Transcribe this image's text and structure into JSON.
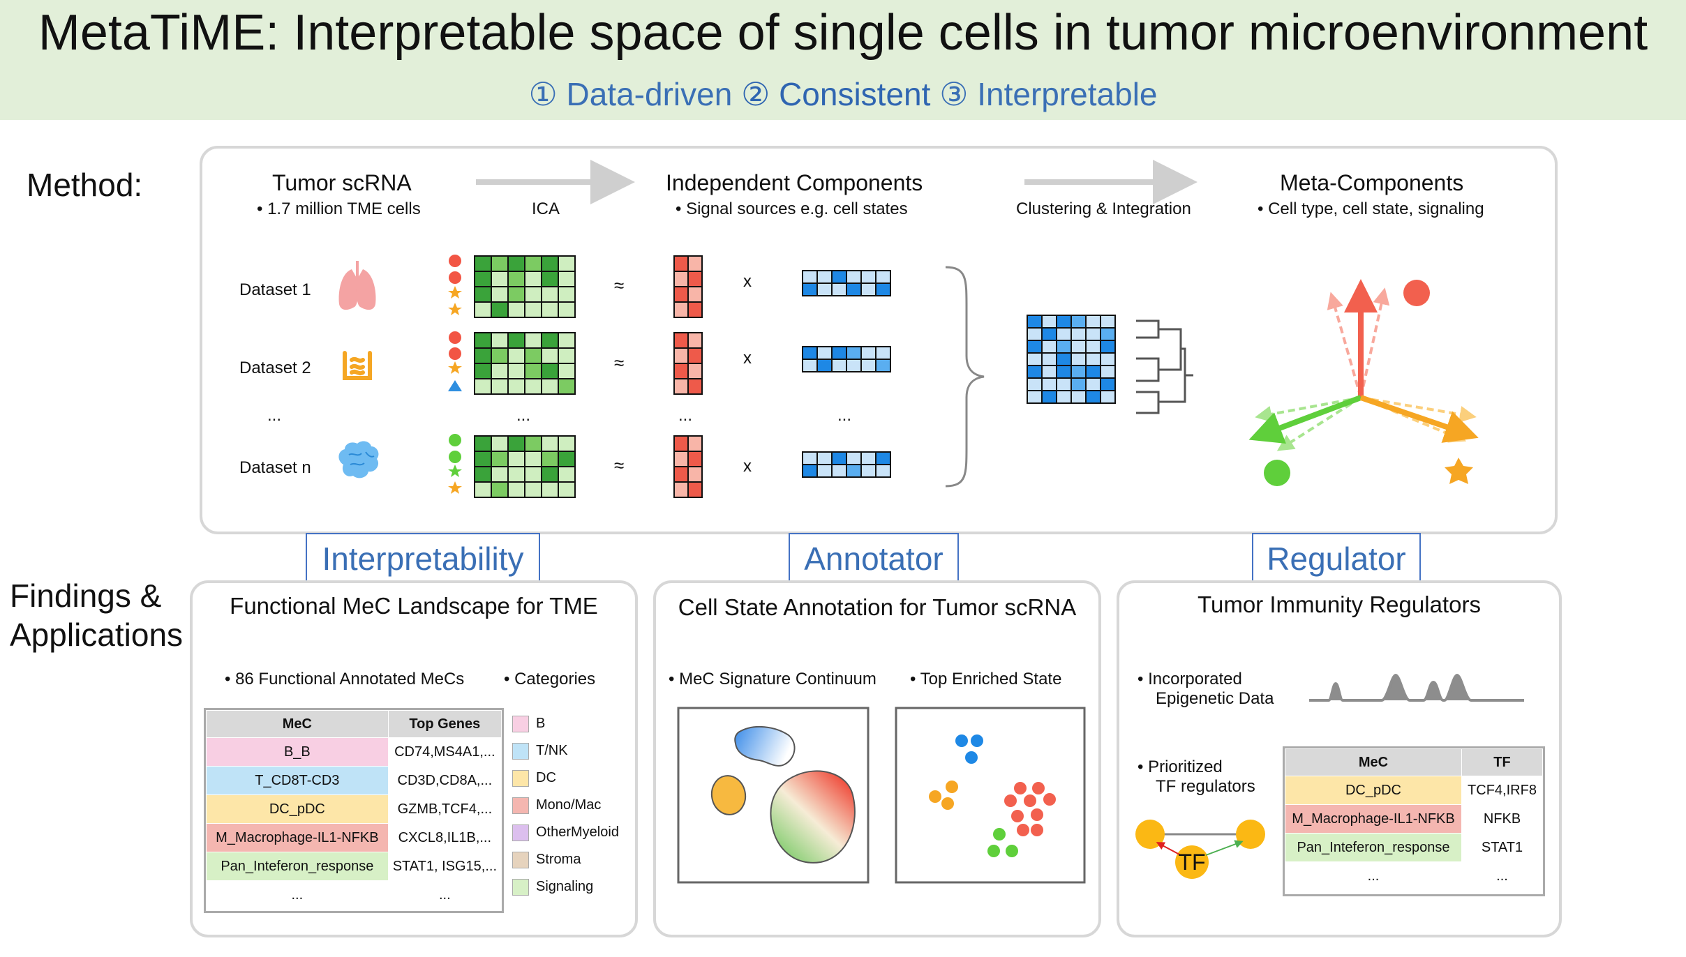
{
  "header": {
    "title": "MetaTiME: Interpretable space of single cells in tumor microenvironment",
    "sub1": "① Data-driven",
    "sub2": "② Consistent",
    "sub3": "③ Interpretable"
  },
  "method": {
    "label": "Method:",
    "col1_title": "Tumor scRNA",
    "col1_bullet": "•  1.7 million TME cells",
    "ica_label": "ICA",
    "col2_title": "Independent Components",
    "col2_bullet": "•  Signal sources e.g. cell states",
    "cluster_label": "Clustering & Integration",
    "col3_title": "Meta-Components",
    "col3_bullet": "•  Cell type, cell state, signaling",
    "datasets": [
      "Dataset 1",
      "Dataset 2",
      "...",
      "Dataset n"
    ],
    "approx": "≈",
    "times": "x",
    "ellipsis": "..."
  },
  "findings": {
    "label_line1": "Findings &",
    "label_line2": "Applications"
  },
  "tags": {
    "interpretability": "Interpretability",
    "annotator": "Annotator",
    "regulator": "Regulator"
  },
  "panel1": {
    "title": "Functional MeC Landscape for TME",
    "bullet1": "•  86 Functional Annotated MeCs",
    "bullet2": "•  Categories",
    "table_headers": [
      "MeC",
      "Top Genes"
    ],
    "rows": [
      {
        "mec": "B_B",
        "genes": "CD74,MS4A1,...",
        "color": "#f8cfe3"
      },
      {
        "mec": "T_CD8T-CD3",
        "genes": "CD3D,CD8A,...",
        "color": "#bfe3f7"
      },
      {
        "mec": "DC_pDC",
        "genes": "GZMB,TCF4,...",
        "color": "#fde6a8"
      },
      {
        "mec": "M_Macrophage-IL1-NFKB",
        "genes": "CXCL8,IL1B,...",
        "color": "#f4b6b0"
      },
      {
        "mec": "Pan_Inteferon_response",
        "genes": "STAT1, ISG15,...",
        "color": "#d7f0c6"
      },
      {
        "mec": "...",
        "genes": "...",
        "color": "#ffffff"
      }
    ],
    "categories": [
      {
        "name": "B",
        "color": "#f8cfe3"
      },
      {
        "name": "T/NK",
        "color": "#bfe3f7"
      },
      {
        "name": "DC",
        "color": "#fde6a8"
      },
      {
        "name": "Mono/Mac",
        "color": "#f4b6b0"
      },
      {
        "name": "OtherMyeloid",
        "color": "#dcbfee"
      },
      {
        "name": "Stroma",
        "color": "#e6d3bd"
      },
      {
        "name": "Signaling",
        "color": "#d7f0c6"
      }
    ]
  },
  "panel2": {
    "title": "Cell State Annotation for Tumor scRNA",
    "bullet1": "•  MeC Signature Continuum",
    "bullet2": "•  Top Enriched State"
  },
  "panel3": {
    "title": "Tumor Immunity Regulators",
    "bullet1_line1": "•  Incorporated",
    "bullet1_line2": "Epigenetic Data",
    "bullet2_line1": "•  Prioritized",
    "bullet2_line2": "TF regulators",
    "tf_label": "TF",
    "table_headers": [
      "MeC",
      "TF"
    ],
    "rows": [
      {
        "mec": "DC_pDC",
        "tf": "TCF4,IRF8",
        "color": "#fde6a8"
      },
      {
        "mec": "M_Macrophage-IL1-NFKB",
        "tf": "NFKB",
        "color": "#f4b6b0"
      },
      {
        "mec": "Pan_Inteferon_response",
        "tf": "STAT1",
        "color": "#d7f0c6"
      },
      {
        "mec": "...",
        "tf": "...",
        "color": "#ffffff"
      }
    ]
  }
}
